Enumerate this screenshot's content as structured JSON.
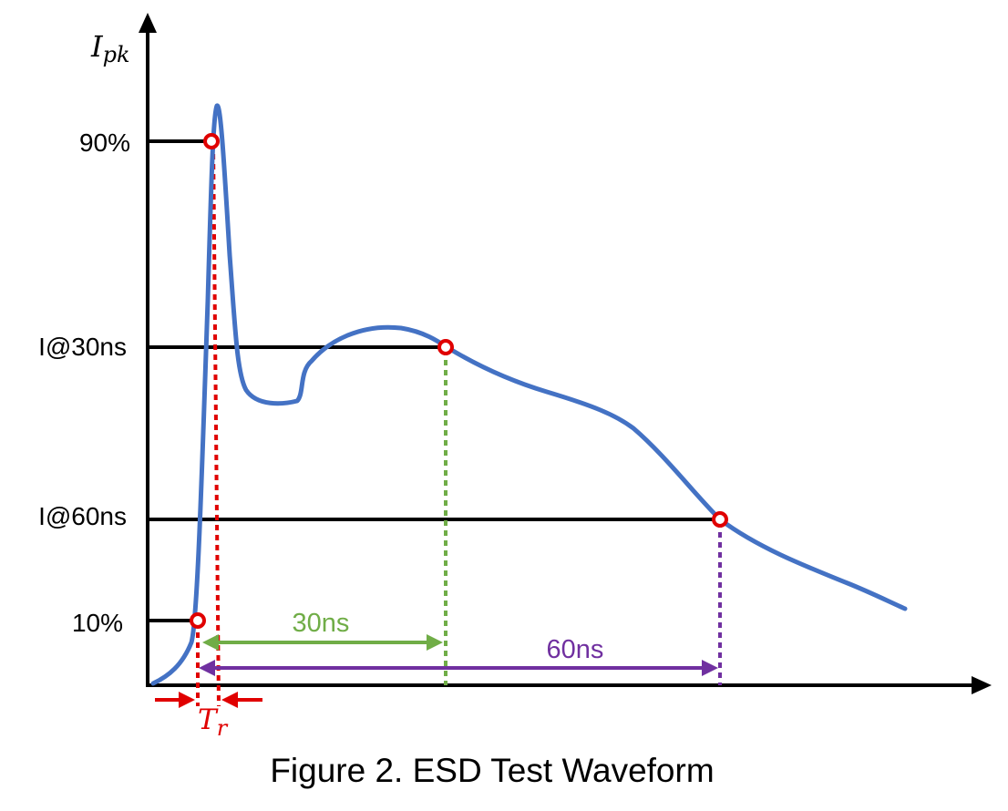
{
  "y_axis_label": {
    "main": "I",
    "sub": "pk"
  },
  "levels": [
    {
      "id": "90pct",
      "label": "90%"
    },
    {
      "id": "i30",
      "label": "I@30ns"
    },
    {
      "id": "i60",
      "label": "I@60ns"
    },
    {
      "id": "10pct",
      "label": "10%"
    }
  ],
  "measurements": {
    "t30": {
      "label": "30ns",
      "color": "#70ad47"
    },
    "t60": {
      "label": "60ns",
      "color": "#7030a0"
    },
    "rise": {
      "main": "T",
      "sub": "r",
      "color": "#e00000"
    }
  },
  "colors": {
    "waveform": "#4472c4",
    "axis": "#000000",
    "marker": "#e00000",
    "rise_guides": "#e00000"
  },
  "caption": "Figure 2. ESD Test Waveform"
}
